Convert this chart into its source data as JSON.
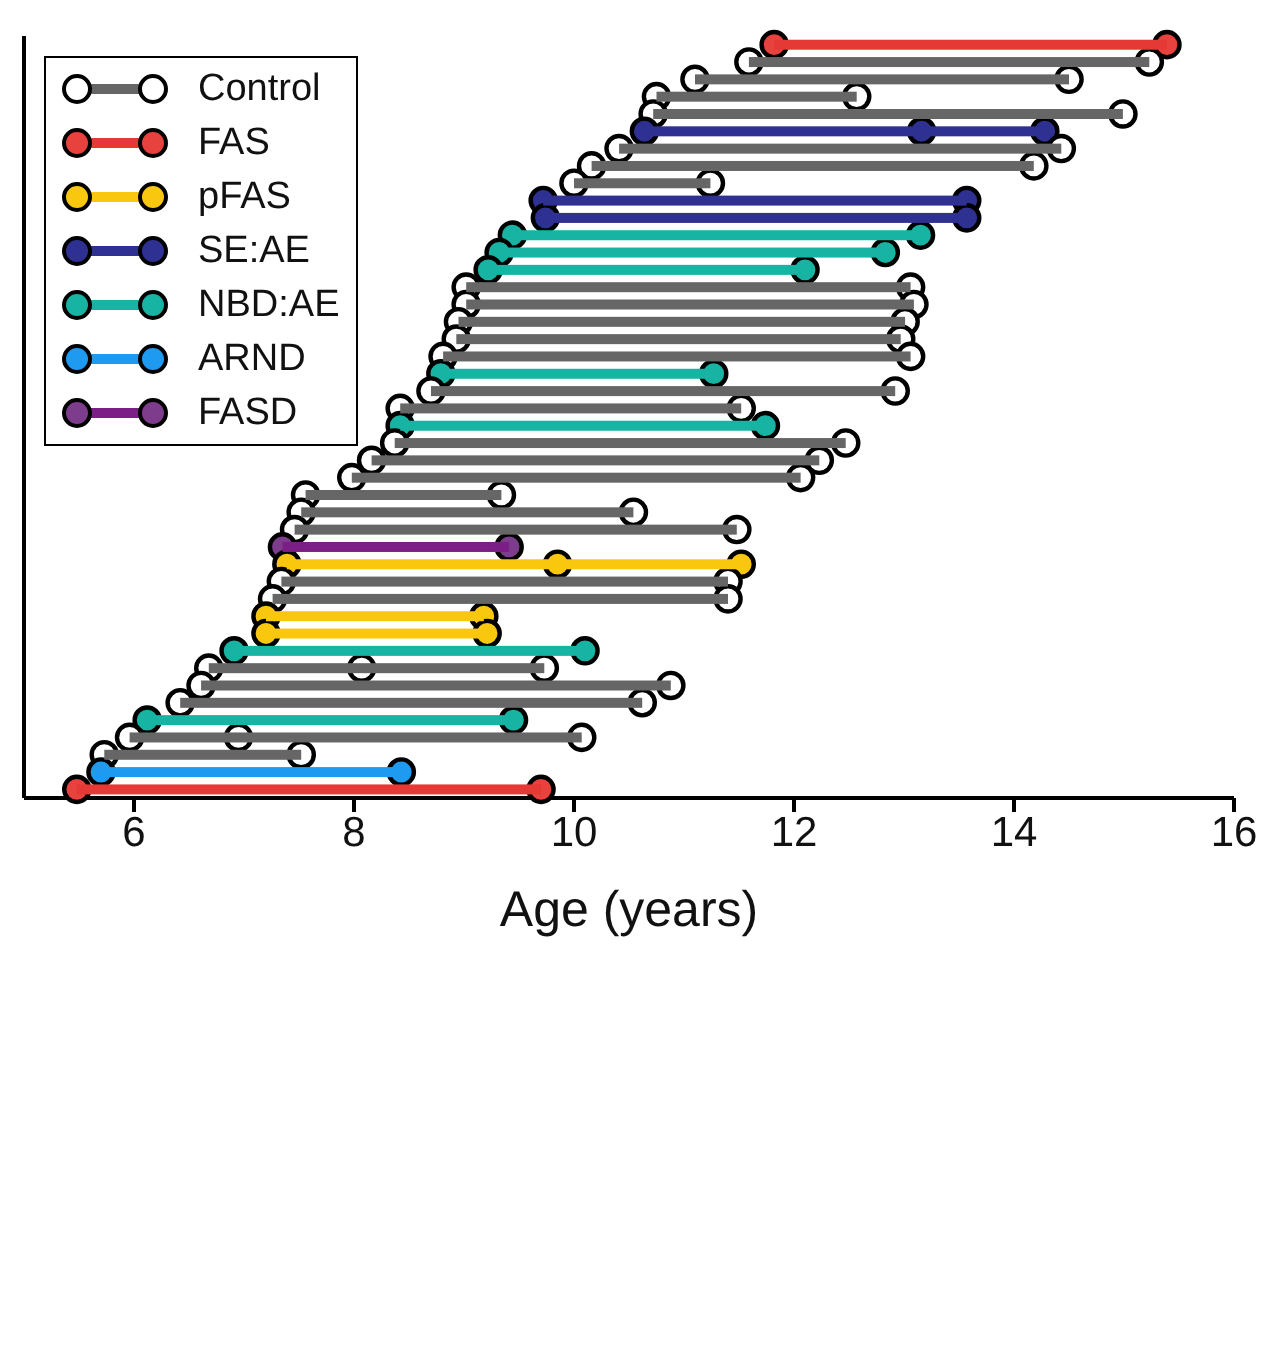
{
  "chart_data": {
    "type": "bar",
    "orientation": "horizontal",
    "xlabel": "Age (years)",
    "xlim": [
      5,
      16
    ],
    "xticks": [
      6,
      8,
      10,
      12,
      14,
      16
    ],
    "legend": "top left",
    "grid": false,
    "categories": [
      null,
      null,
      null,
      null,
      null,
      null,
      null,
      null,
      null,
      null,
      null,
      null,
      null,
      null,
      null,
      null,
      null,
      null,
      null,
      null,
      null,
      null,
      null,
      null,
      null,
      null,
      null,
      null,
      null,
      null,
      null,
      null,
      null,
      null,
      null,
      null,
      null,
      null,
      null,
      null,
      null,
      null,
      null,
      null
    ],
    "series": [
      {
        "name": "Control",
        "color": "#666666",
        "base": [
          null,
          11.59,
          11.1,
          10.75,
          10.72,
          null,
          10.41,
          10.16,
          10.0,
          null,
          null,
          null,
          null,
          null,
          9.02,
          9.02,
          8.95,
          8.93,
          8.81,
          null,
          8.7,
          8.42,
          null,
          8.37,
          8.16,
          7.98,
          7.56,
          7.52,
          7.46,
          null,
          null,
          7.34,
          7.26,
          null,
          null,
          null,
          6.68,
          6.61,
          6.42,
          null,
          5.96,
          5.73,
          null,
          null
        ],
        "values": [
          null,
          3.64,
          3.4,
          1.82,
          4.27,
          null,
          4.02,
          4.02,
          1.24,
          null,
          null,
          null,
          null,
          null,
          4.04,
          4.07,
          4.06,
          4.04,
          4.25,
          null,
          4.22,
          3.1,
          null,
          4.1,
          4.07,
          4.08,
          1.78,
          3.02,
          4.02,
          null,
          null,
          4.06,
          4.14,
          null,
          null,
          null,
          3.05,
          4.27,
          4.2,
          null,
          4.11,
          1.79,
          null,
          null
        ]
      },
      {
        "name": "FAS",
        "color": "#e53935",
        "base": [
          11.82,
          null,
          null,
          null,
          null,
          null,
          null,
          null,
          null,
          null,
          null,
          null,
          null,
          null,
          null,
          null,
          null,
          null,
          null,
          null,
          null,
          null,
          null,
          null,
          null,
          null,
          null,
          null,
          null,
          null,
          null,
          null,
          null,
          null,
          null,
          null,
          null,
          null,
          null,
          null,
          null,
          null,
          null,
          5.48
        ],
        "values": [
          3.57,
          null,
          null,
          null,
          null,
          null,
          null,
          null,
          null,
          null,
          null,
          null,
          null,
          null,
          null,
          null,
          null,
          null,
          null,
          null,
          null,
          null,
          null,
          null,
          null,
          null,
          null,
          null,
          null,
          null,
          null,
          null,
          null,
          null,
          null,
          null,
          null,
          null,
          null,
          null,
          null,
          null,
          null,
          4.22
        ]
      },
      {
        "name": "pFAS",
        "color": "#f9c80e",
        "base": [
          null,
          null,
          null,
          null,
          null,
          null,
          null,
          null,
          null,
          null,
          null,
          null,
          null,
          null,
          null,
          null,
          null,
          null,
          null,
          null,
          null,
          null,
          null,
          null,
          null,
          null,
          null,
          null,
          null,
          null,
          7.39,
          null,
          null,
          7.2,
          7.2,
          null,
          null,
          null,
          null,
          null,
          null,
          null,
          null,
          null
        ],
        "values": [
          null,
          null,
          null,
          null,
          null,
          null,
          null,
          null,
          null,
          null,
          null,
          null,
          null,
          null,
          null,
          null,
          null,
          null,
          null,
          null,
          null,
          null,
          null,
          null,
          null,
          null,
          null,
          null,
          null,
          null,
          4.13,
          null,
          null,
          1.98,
          2.01,
          null,
          null,
          null,
          null,
          null,
          null,
          null,
          null,
          null
        ]
      },
      {
        "name": "SE:AE",
        "color": "#2e3192",
        "base": [
          null,
          null,
          null,
          null,
          null,
          10.64,
          null,
          null,
          null,
          9.72,
          9.74,
          null,
          null,
          null,
          null,
          null,
          null,
          null,
          null,
          null,
          null,
          null,
          null,
          null,
          null,
          null,
          null,
          null,
          null,
          null,
          null,
          null,
          null,
          null,
          null,
          null,
          null,
          null,
          null,
          null,
          null,
          null,
          null,
          null
        ],
        "values": [
          null,
          null,
          null,
          null,
          null,
          3.64,
          null,
          null,
          null,
          3.85,
          3.83,
          null,
          null,
          null,
          null,
          null,
          null,
          null,
          null,
          null,
          null,
          null,
          null,
          null,
          null,
          null,
          null,
          null,
          null,
          null,
          null,
          null,
          null,
          null,
          null,
          null,
          null,
          null,
          null,
          null,
          null,
          null,
          null,
          null
        ]
      },
      {
        "name": "NBD:AE",
        "color": "#17b3a3",
        "base": [
          null,
          null,
          null,
          null,
          null,
          null,
          null,
          null,
          null,
          null,
          null,
          9.44,
          9.32,
          9.22,
          null,
          null,
          null,
          null,
          null,
          8.79,
          null,
          null,
          8.42,
          null,
          null,
          null,
          null,
          null,
          null,
          null,
          null,
          null,
          null,
          null,
          null,
          6.91,
          null,
          null,
          null,
          6.12,
          null,
          null,
          null,
          null
        ],
        "values": [
          null,
          null,
          null,
          null,
          null,
          null,
          null,
          null,
          null,
          null,
          null,
          3.71,
          3.51,
          2.88,
          null,
          null,
          null,
          null,
          null,
          2.48,
          null,
          null,
          3.32,
          null,
          null,
          null,
          null,
          null,
          null,
          null,
          null,
          null,
          null,
          null,
          null,
          3.19,
          null,
          null,
          null,
          3.33,
          null,
          null,
          null,
          null
        ]
      },
      {
        "name": "ARND",
        "color": "#1e9af0",
        "base": [
          null,
          null,
          null,
          null,
          null,
          null,
          null,
          null,
          null,
          null,
          null,
          null,
          null,
          null,
          null,
          null,
          null,
          null,
          null,
          null,
          null,
          null,
          null,
          null,
          null,
          null,
          null,
          null,
          null,
          null,
          null,
          null,
          null,
          null,
          null,
          null,
          null,
          null,
          null,
          null,
          null,
          null,
          5.7,
          null
        ],
        "values": [
          null,
          null,
          null,
          null,
          null,
          null,
          null,
          null,
          null,
          null,
          null,
          null,
          null,
          null,
          null,
          null,
          null,
          null,
          null,
          null,
          null,
          null,
          null,
          null,
          null,
          null,
          null,
          null,
          null,
          null,
          null,
          null,
          null,
          null,
          null,
          null,
          null,
          null,
          null,
          null,
          null,
          null,
          2.73,
          null
        ]
      },
      {
        "name": "FASD",
        "color": "#7b1f86",
        "base": [
          null,
          null,
          null,
          null,
          null,
          null,
          null,
          null,
          null,
          null,
          null,
          null,
          null,
          null,
          null,
          null,
          null,
          null,
          null,
          null,
          null,
          null,
          null,
          null,
          null,
          null,
          null,
          null,
          null,
          7.35,
          null,
          null,
          null,
          null,
          null,
          null,
          null,
          null,
          null,
          null,
          null,
          null,
          null,
          null
        ],
        "values": [
          null,
          null,
          null,
          null,
          null,
          null,
          null,
          null,
          null,
          null,
          null,
          null,
          null,
          null,
          null,
          null,
          null,
          null,
          null,
          null,
          null,
          null,
          null,
          null,
          null,
          null,
          null,
          null,
          null,
          2.06,
          null,
          null,
          null,
          null,
          null,
          null,
          null,
          null,
          null,
          null,
          null,
          null,
          null,
          null
        ]
      },
      {
        "type": "scatter",
        "marker": "circle",
        "values": [
          11.82,
          11.59,
          11.1,
          10.75,
          10.72,
          10.64,
          10.41,
          10.16,
          10.0,
          9.72,
          9.74,
          9.44,
          9.32,
          9.22,
          9.02,
          9.02,
          8.95,
          8.93,
          8.81,
          8.79,
          8.7,
          8.42,
          8.42,
          8.37,
          8.16,
          7.98,
          7.56,
          7.52,
          7.46,
          7.35,
          7.39,
          7.34,
          7.26,
          7.2,
          7.2,
          6.91,
          6.68,
          6.61,
          6.42,
          6.12,
          5.96,
          5.73,
          5.7,
          5.48
        ],
        "colors": [
          "#e8423f",
          "#ffffff",
          "#ffffff",
          "#ffffff",
          "#ffffff",
          "#2e3192",
          "#ffffff",
          "#ffffff",
          "#ffffff",
          "#2e3192",
          "#2e3192",
          "#17b3a3",
          "#17b3a3",
          "#17b3a3",
          "#ffffff",
          "#ffffff",
          "#ffffff",
          "#ffffff",
          "#ffffff",
          "#17b3a3",
          "#ffffff",
          "#ffffff",
          "#17b3a3",
          "#ffffff",
          "#ffffff",
          "#ffffff",
          "#ffffff",
          "#ffffff",
          "#ffffff",
          "#7d3c8c",
          "#f9c80e",
          "#ffffff",
          "#ffffff",
          "#f9c80e",
          "#f9c80e",
          "#17b3a3",
          "#ffffff",
          "#ffffff",
          "#ffffff",
          "#17b3a3",
          "#ffffff",
          "#ffffff",
          "#1e9af0",
          "#e8423f"
        ]
      },
      {
        "type": "scatter",
        "marker": "circle",
        "values": [
          null,
          null,
          null,
          null,
          null,
          13.16,
          null,
          null,
          null,
          null,
          null,
          null,
          null,
          null,
          null,
          null,
          null,
          null,
          null,
          null,
          null,
          null,
          null,
          null,
          null,
          null,
          null,
          null,
          null,
          null,
          9.85,
          null,
          null,
          null,
          null,
          null,
          8.07,
          null,
          null,
          null,
          6.95,
          null,
          null,
          null
        ],
        "colors": [
          null,
          null,
          null,
          null,
          null,
          "#2e3192",
          null,
          null,
          null,
          null,
          null,
          null,
          null,
          null,
          null,
          null,
          null,
          null,
          null,
          null,
          null,
          null,
          null,
          null,
          null,
          null,
          null,
          null,
          null,
          null,
          "#f9c80e",
          null,
          null,
          null,
          null,
          null,
          "#ffffff",
          null,
          null,
          null,
          "#ffffff",
          null,
          null,
          null
        ]
      },
      {
        "type": "scatter",
        "marker": "circle",
        "values": [
          15.39,
          15.23,
          14.5,
          12.57,
          14.99,
          14.28,
          14.43,
          14.18,
          11.24,
          13.57,
          13.57,
          13.15,
          12.83,
          12.1,
          13.06,
          13.09,
          13.01,
          12.97,
          13.06,
          11.27,
          12.92,
          11.52,
          11.74,
          12.47,
          12.23,
          12.06,
          9.34,
          10.54,
          11.48,
          9.41,
          11.52,
          11.4,
          11.4,
          9.18,
          9.21,
          10.1,
          9.73,
          10.88,
          10.62,
          9.45,
          10.07,
          7.52,
          8.43,
          9.7
        ],
        "colors": [
          "#e8423f",
          "#ffffff",
          "#ffffff",
          "#ffffff",
          "#ffffff",
          "#2e3192",
          "#ffffff",
          "#ffffff",
          "#ffffff",
          "#2e3192",
          "#2e3192",
          "#17b3a3",
          "#17b3a3",
          "#17b3a3",
          "#ffffff",
          "#ffffff",
          "#ffffff",
          "#ffffff",
          "#ffffff",
          "#17b3a3",
          "#ffffff",
          "#ffffff",
          "#17b3a3",
          "#ffffff",
          "#ffffff",
          "#ffffff",
          "#ffffff",
          "#ffffff",
          "#ffffff",
          "#7d3c8c",
          "#f9c80e",
          "#ffffff",
          "#ffffff",
          "#f9c80e",
          "#f9c80e",
          "#17b3a3",
          "#ffffff",
          "#ffffff",
          "#ffffff",
          "#17b3a3",
          "#ffffff",
          "#ffffff",
          "#1e9af0",
          "#e8423f"
        ]
      }
    ]
  }
}
